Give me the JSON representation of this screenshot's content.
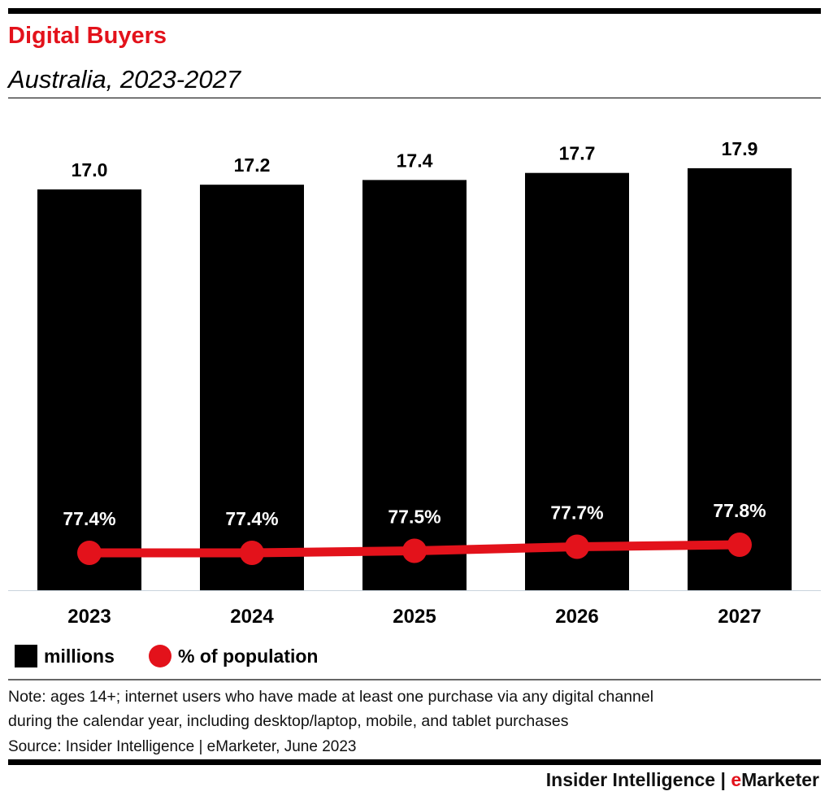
{
  "chart_data": {
    "type": "bar",
    "title": "Digital Buyers",
    "subtitle": "Australia, 2023-2027",
    "categories": [
      "2023",
      "2024",
      "2025",
      "2026",
      "2027"
    ],
    "series": [
      {
        "name": "millions",
        "type": "bar",
        "values": [
          17.0,
          17.2,
          17.4,
          17.7,
          17.9
        ],
        "labels": [
          "17.0",
          "17.2",
          "17.4",
          "17.7",
          "17.9"
        ],
        "color": "#000000"
      },
      {
        "name": "% of population",
        "type": "line",
        "values": [
          77.4,
          77.4,
          77.5,
          77.7,
          77.8
        ],
        "labels": [
          "77.4%",
          "77.4%",
          "77.5%",
          "77.7%",
          "77.8%"
        ],
        "color": "#e3121b"
      }
    ],
    "grid": false,
    "legend": "bottom-left"
  },
  "note_line1": "Note: ages 14+; internet users who have made at least one purchase via any digital channel",
  "note_line2": "during the calendar year, including desktop/laptop, mobile, and tablet purchases",
  "source": "Source: Insider Intelligence | eMarketer, June 2023",
  "brand": {
    "part1": "Insider Intelligence | ",
    "part2": "e",
    "part3": "Marketer"
  }
}
